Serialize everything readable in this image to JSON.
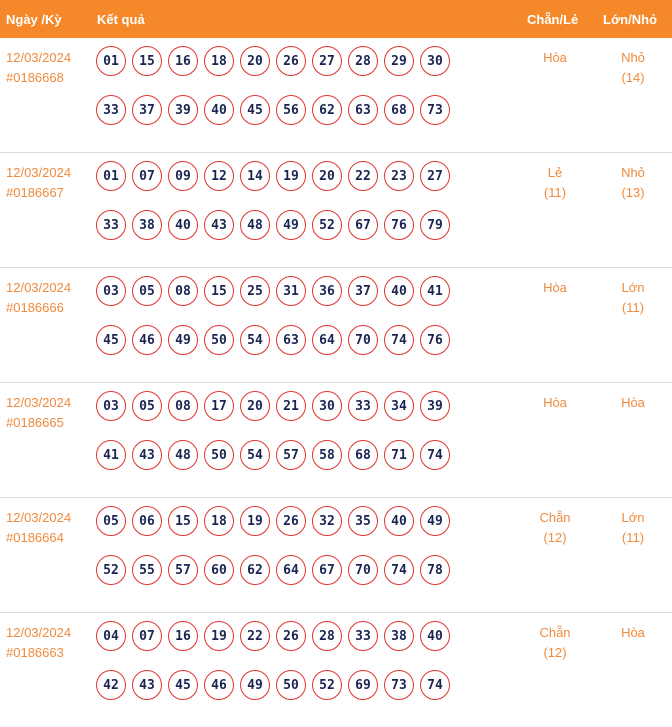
{
  "header": {
    "date_label": "Ngày /Kỳ",
    "result_label": "Kết quả",
    "chanle_label": "Chẵn/Lẻ",
    "lonnho_label": "Lớn/Nhỏ"
  },
  "colors": {
    "header_bg": "#f5892a",
    "accent_text": "#f08a3c",
    "ball_border": "#e0332f",
    "ball_text": "#1b2553"
  },
  "draws": [
    {
      "date": "12/03/2024",
      "draw_id": "#0186668",
      "numbers": [
        "01",
        "15",
        "16",
        "18",
        "20",
        "26",
        "27",
        "28",
        "29",
        "30",
        "33",
        "37",
        "39",
        "40",
        "45",
        "56",
        "62",
        "63",
        "68",
        "73"
      ],
      "chan_le": "Hòa",
      "chan_le_count": "",
      "lon_nho": "Nhỏ",
      "lon_nho_count": "(14)"
    },
    {
      "date": "12/03/2024",
      "draw_id": "#0186667",
      "numbers": [
        "01",
        "07",
        "09",
        "12",
        "14",
        "19",
        "20",
        "22",
        "23",
        "27",
        "33",
        "38",
        "40",
        "43",
        "48",
        "49",
        "52",
        "67",
        "76",
        "79"
      ],
      "chan_le": "Lẻ",
      "chan_le_count": "(11)",
      "lon_nho": "Nhỏ",
      "lon_nho_count": "(13)"
    },
    {
      "date": "12/03/2024",
      "draw_id": "#0186666",
      "numbers": [
        "03",
        "05",
        "08",
        "15",
        "25",
        "31",
        "36",
        "37",
        "40",
        "41",
        "45",
        "46",
        "49",
        "50",
        "54",
        "63",
        "64",
        "70",
        "74",
        "76"
      ],
      "chan_le": "Hòa",
      "chan_le_count": "",
      "lon_nho": "Lớn",
      "lon_nho_count": "(11)"
    },
    {
      "date": "12/03/2024",
      "draw_id": "#0186665",
      "numbers": [
        "03",
        "05",
        "08",
        "17",
        "20",
        "21",
        "30",
        "33",
        "34",
        "39",
        "41",
        "43",
        "48",
        "50",
        "54",
        "57",
        "58",
        "68",
        "71",
        "74"
      ],
      "chan_le": "Hòa",
      "chan_le_count": "",
      "lon_nho": "Hòa",
      "lon_nho_count": ""
    },
    {
      "date": "12/03/2024",
      "draw_id": "#0186664",
      "numbers": [
        "05",
        "06",
        "15",
        "18",
        "19",
        "26",
        "32",
        "35",
        "40",
        "49",
        "52",
        "55",
        "57",
        "60",
        "62",
        "64",
        "67",
        "70",
        "74",
        "78"
      ],
      "chan_le": "Chẵn",
      "chan_le_count": "(12)",
      "lon_nho": "Lớn",
      "lon_nho_count": "(11)"
    },
    {
      "date": "12/03/2024",
      "draw_id": "#0186663",
      "numbers": [
        "04",
        "07",
        "16",
        "19",
        "22",
        "26",
        "28",
        "33",
        "38",
        "40",
        "42",
        "43",
        "45",
        "46",
        "49",
        "50",
        "52",
        "69",
        "73",
        "74"
      ],
      "chan_le": "Chẵn",
      "chan_le_count": "(12)",
      "lon_nho": "Hòa",
      "lon_nho_count": ""
    }
  ]
}
